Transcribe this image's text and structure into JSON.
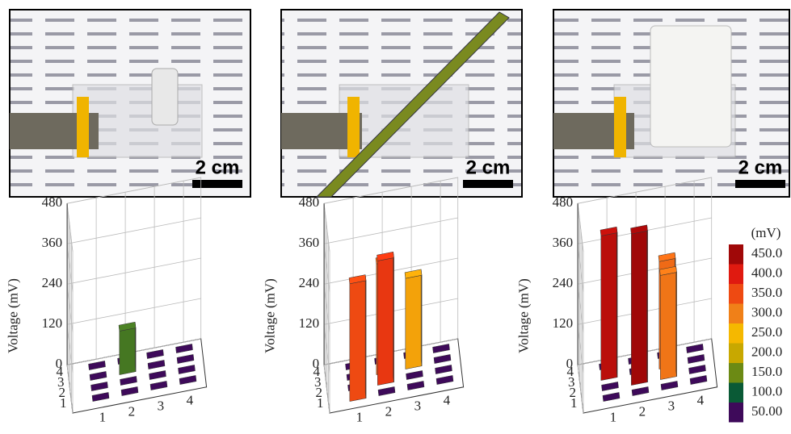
{
  "photos": [
    {
      "scale_label": "2 cm"
    },
    {
      "scale_label": "2 cm"
    },
    {
      "scale_label": "2 cm"
    }
  ],
  "chart_data": [
    {
      "type": "bar3d",
      "zlabel": "Voltage (mV)",
      "zlim": [
        0,
        480
      ],
      "zticks": [
        0,
        120,
        240,
        360,
        480
      ],
      "xticks": [
        1,
        2,
        3,
        4
      ],
      "yticks": [
        1,
        2,
        3,
        4
      ],
      "x": [
        1,
        2,
        3,
        4,
        1,
        2,
        3,
        4,
        1,
        2,
        3,
        4,
        1,
        2,
        3,
        4
      ],
      "y": [
        4,
        4,
        4,
        4,
        3,
        3,
        3,
        3,
        2,
        2,
        2,
        2,
        1,
        1,
        1,
        1
      ],
      "values": [
        0,
        0,
        0,
        0,
        0,
        130,
        0,
        0,
        0,
        0,
        0,
        0,
        0,
        0,
        0,
        0
      ]
    },
    {
      "type": "bar3d",
      "zlabel": "Voltage (mV)",
      "zlim": [
        0,
        480
      ],
      "zticks": [
        0,
        120,
        240,
        360,
        480
      ],
      "xticks": [
        1,
        2,
        3,
        4
      ],
      "yticks": [
        1,
        2,
        3,
        4
      ],
      "x": [
        1,
        2,
        3,
        4,
        1,
        2,
        3,
        4,
        1,
        2,
        3,
        4,
        1,
        2,
        3,
        4
      ],
      "y": [
        4,
        4,
        4,
        4,
        3,
        3,
        3,
        3,
        2,
        2,
        2,
        2,
        1,
        1,
        1,
        1
      ],
      "values": [
        0,
        0,
        0,
        0,
        0,
        330,
        270,
        0,
        0,
        370,
        0,
        0,
        350,
        0,
        0,
        0
      ]
    },
    {
      "type": "bar3d",
      "zlabel": "Voltage (mV)",
      "zlim": [
        0,
        480
      ],
      "zticks": [
        0,
        120,
        240,
        360,
        480
      ],
      "xticks": [
        1,
        2,
        3,
        4
      ],
      "yticks": [
        1,
        2,
        3,
        4
      ],
      "x": [
        1,
        2,
        3,
        4,
        1,
        2,
        3,
        4,
        1,
        2,
        3,
        4,
        1,
        2,
        3,
        4
      ],
      "y": [
        4,
        4,
        4,
        4,
        3,
        3,
        3,
        3,
        2,
        2,
        2,
        2,
        1,
        1,
        1,
        1
      ],
      "values": [
        0,
        0,
        0,
        0,
        430,
        0,
        320,
        0,
        0,
        450,
        310,
        0,
        0,
        0,
        0,
        0
      ]
    }
  ],
  "colorbar": {
    "title": "(mV)",
    "ticks": [
      {
        "value": 450,
        "label": "450.0"
      },
      {
        "value": 400,
        "label": "400.0"
      },
      {
        "value": 350,
        "label": "350.0"
      },
      {
        "value": 300,
        "label": "300.0"
      },
      {
        "value": 250,
        "label": "250.0"
      },
      {
        "value": 200,
        "label": "200.0"
      },
      {
        "value": 150,
        "label": "150.0"
      },
      {
        "value": 100,
        "label": "100.0"
      },
      {
        "value": 50,
        "label": "50.00"
      }
    ],
    "colors": [
      "#a00808",
      "#e01a10",
      "#ee4a12",
      "#f08018",
      "#f5b800",
      "#c8a800",
      "#6c8a14",
      "#0a5a36",
      "#3e0a5a"
    ]
  }
}
